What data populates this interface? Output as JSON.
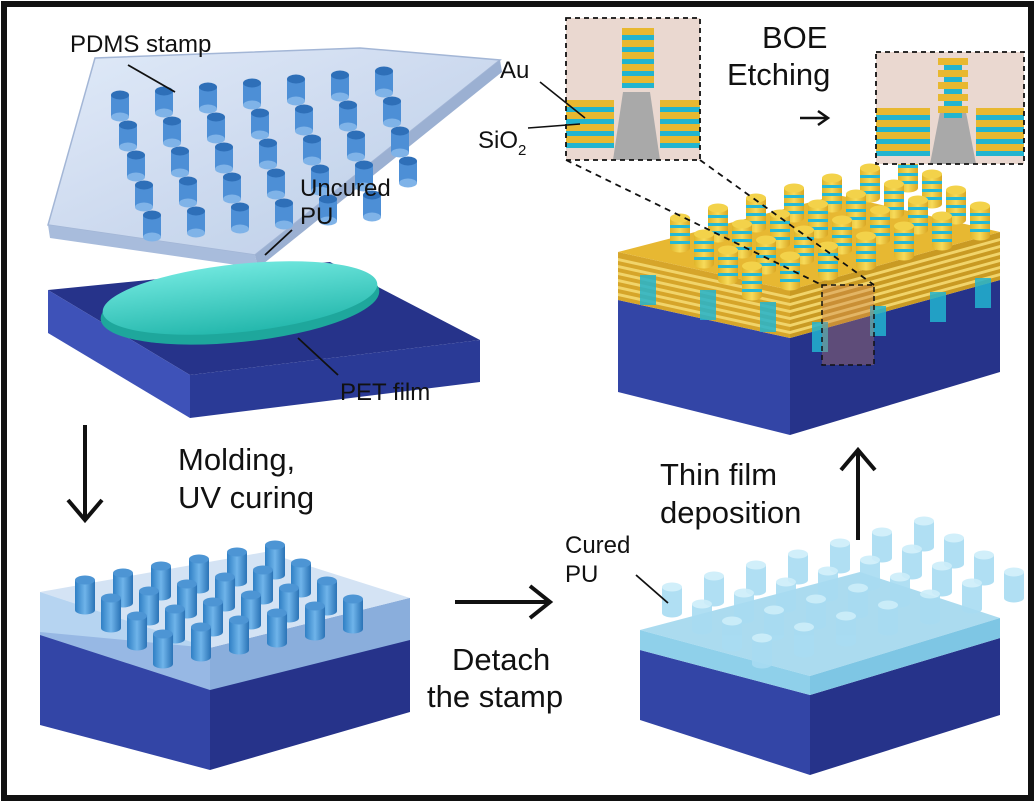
{
  "labels": {
    "pdms_stamp": "PDMS stamp",
    "uncured_pu_1": "Uncured",
    "uncured_pu_2": "PU",
    "pet_film": "PET film",
    "molding_1": "Molding,",
    "molding_2": "UV curing",
    "detach_1": "Detach",
    "detach_2": "the stamp",
    "cured_pu_1": "Cured",
    "cured_pu_2": "PU",
    "thin_film_1": "Thin film",
    "thin_film_2": "deposition",
    "boe_1": "BOE",
    "boe_2": "Etching",
    "au": "Au",
    "sio2_main": "SiO",
    "sio2_sub": "2"
  },
  "colors": {
    "border": "#111111",
    "substrate_top": "#26338a",
    "substrate_front": "#3345a6",
    "substrate_side": "#1d2670",
    "pu_uncured": "#3ed3c8",
    "pdms": "#c9d9f0",
    "pillar": "#3f8fd0",
    "cured_pu": "#bfe6f5",
    "gold": "#e8b830",
    "sio2": "#22b4cf",
    "inset_bg": "#ead8d0",
    "inset_gray": "#a9a9a9"
  }
}
